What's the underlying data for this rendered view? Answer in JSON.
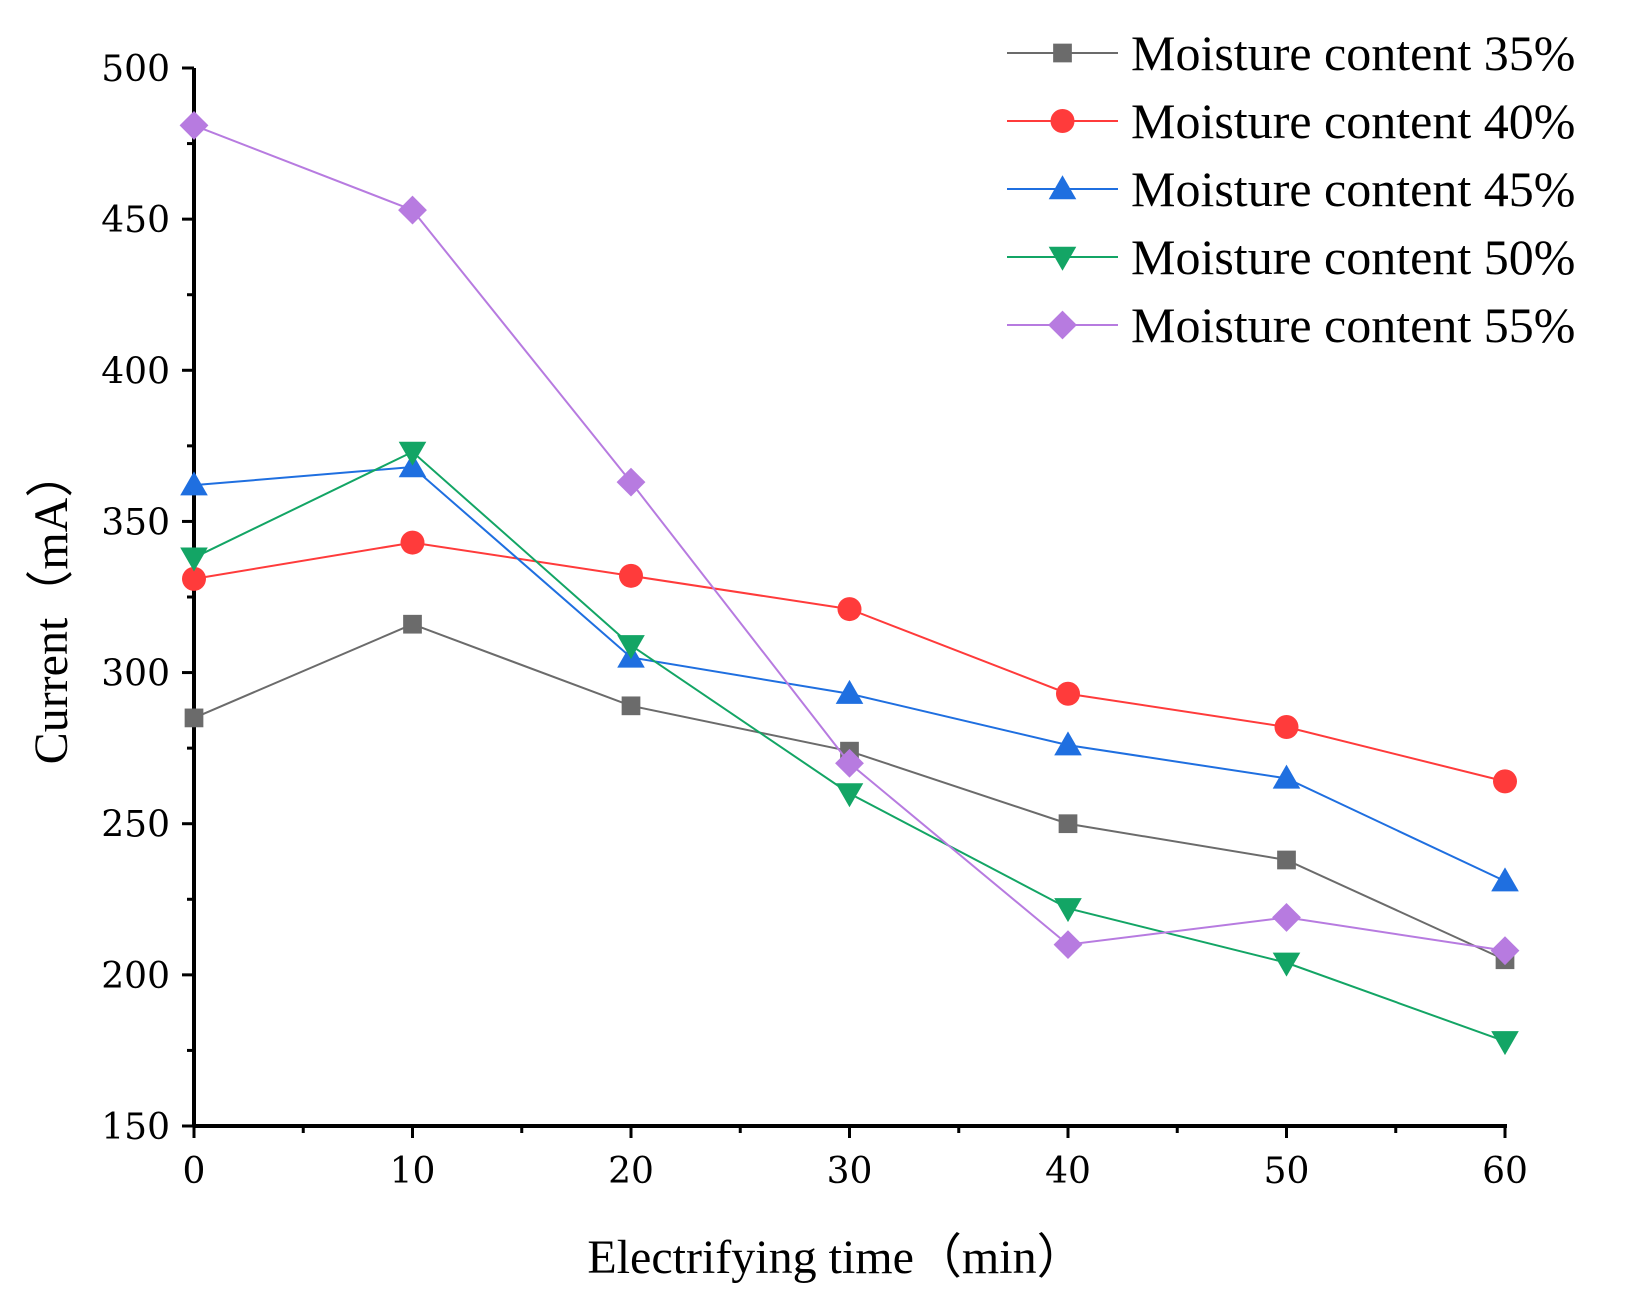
{
  "chart_data": {
    "type": "line",
    "title": "",
    "xlabel": "Electrifying time（min）",
    "ylabel": "Current（mA）",
    "x": [
      0,
      10,
      20,
      30,
      40,
      50,
      60
    ],
    "xlim": [
      0,
      60
    ],
    "ylim": [
      150,
      500
    ],
    "xticks": [
      "0",
      "10",
      "20",
      "30",
      "40",
      "50",
      "60"
    ],
    "yticks": [
      "150",
      "200",
      "250",
      "300",
      "350",
      "400",
      "450",
      "500"
    ],
    "grid": false,
    "legend_position": "top-right",
    "series": [
      {
        "name": "Moisture content 35%",
        "marker": "square",
        "color": "#6b6b6b",
        "values": [
          285,
          316,
          289,
          274,
          250,
          238,
          205
        ]
      },
      {
        "name": "Moisture content 40%",
        "marker": "circle",
        "color": "#ff3b3b",
        "values": [
          331,
          343,
          332,
          321,
          293,
          282,
          264
        ]
      },
      {
        "name": "Moisture content 45%",
        "marker": "triangle-up",
        "color": "#1f6fe0",
        "values": [
          362,
          368,
          305,
          293,
          276,
          265,
          231
        ]
      },
      {
        "name": "Moisture content 50%",
        "marker": "triangle-down",
        "color": "#13a565",
        "values": [
          338,
          373,
          309,
          260,
          222,
          204,
          178
        ]
      },
      {
        "name": "Moisture content 55%",
        "marker": "diamond",
        "color": "#b77be0",
        "values": [
          481,
          453,
          363,
          270,
          210,
          219,
          208
        ]
      }
    ]
  }
}
